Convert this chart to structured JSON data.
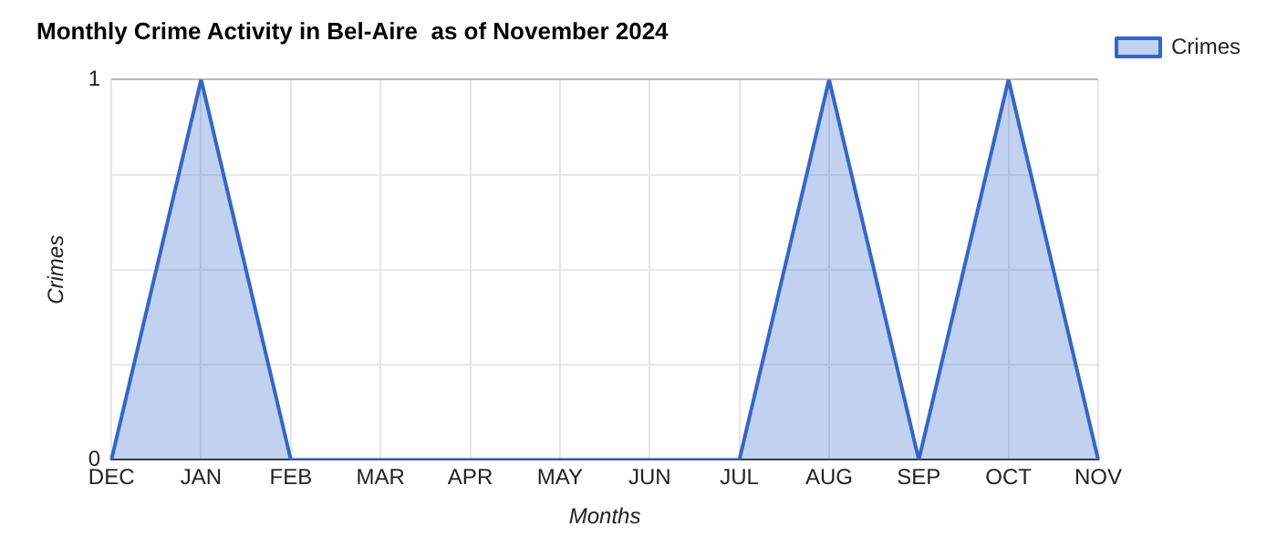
{
  "chart_data": {
    "type": "area",
    "title": "Monthly Crime Activity in Bel-Aire  as of November 2024",
    "xlabel": "Months",
    "ylabel": "Crimes",
    "categories": [
      "DEC",
      "JAN",
      "FEB",
      "MAR",
      "APR",
      "MAY",
      "JUN",
      "JUL",
      "AUG",
      "SEP",
      "OCT",
      "NOV"
    ],
    "series": [
      {
        "name": "Crimes",
        "color": "#3366cc",
        "values": [
          0,
          1,
          0,
          0,
          0,
          0,
          0,
          0,
          1,
          0,
          1,
          0
        ]
      }
    ],
    "ylim": [
      0,
      1
    ],
    "yticks": [
      0,
      {
        "value": 0.25,
        "label": null
      },
      {
        "value": 0.5,
        "label": null
      },
      {
        "value": 0.75,
        "label": null
      },
      1
    ],
    "grid": true,
    "legend": "top right",
    "marker": "none",
    "line_style": "solid"
  }
}
